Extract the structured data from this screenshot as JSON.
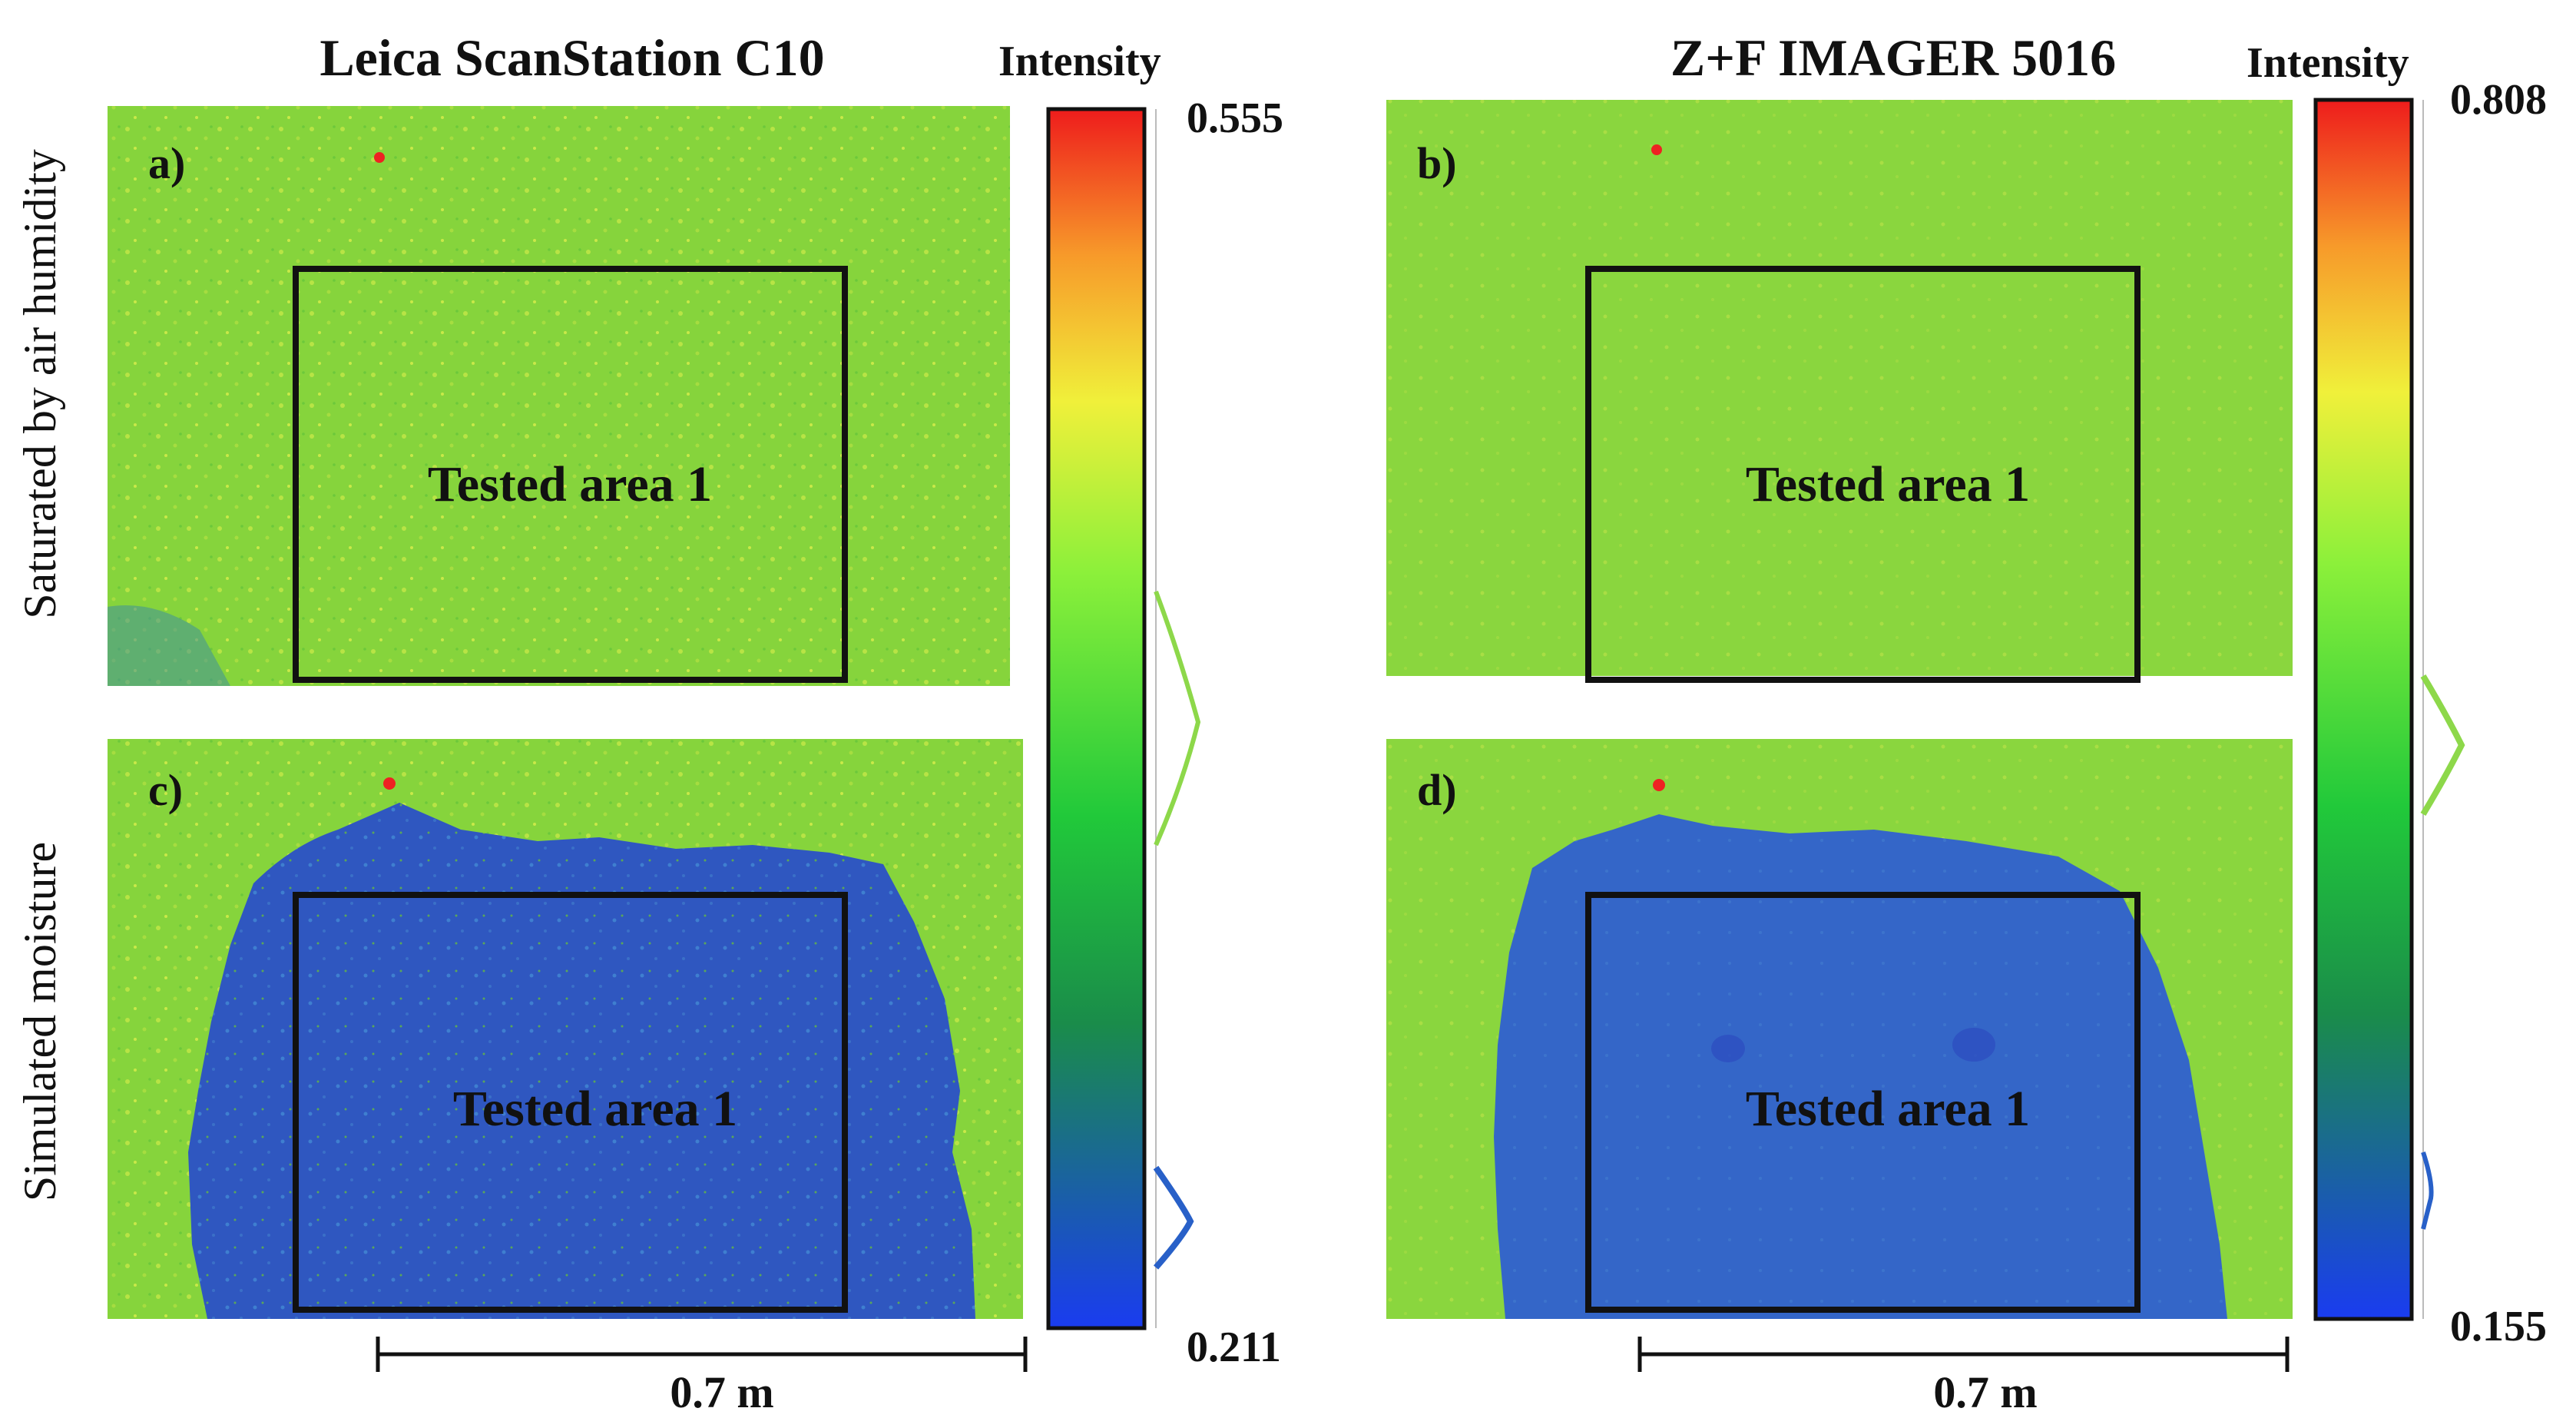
{
  "row_labels": {
    "top": "Saturated by air humidity",
    "bottom": "Simulated moisture"
  },
  "colors": {
    "green": "#7fd43a",
    "yellow_green": "#b9e640",
    "blue": "#2f58c2",
    "frame": "#111111"
  },
  "scanners": [
    {
      "title": "Leica ScanStation C10",
      "colorbar": {
        "label": "Intensity",
        "max": "0.555",
        "min": "0.211"
      },
      "scale_bar": "0.7 m"
    },
    {
      "title": "Z+F IMAGER 5016",
      "colorbar": {
        "label": "Intensity",
        "max": "0.808",
        "min": "0.155"
      },
      "scale_bar": "0.7 m"
    }
  ],
  "panels": [
    {
      "tag": "a)",
      "area_label": "Tested area 1"
    },
    {
      "tag": "b)",
      "area_label": "Tested area 1"
    },
    {
      "tag": "c)",
      "area_label": "Tested area 1"
    },
    {
      "tag": "d)",
      "area_label": "Tested area 1"
    }
  ]
}
